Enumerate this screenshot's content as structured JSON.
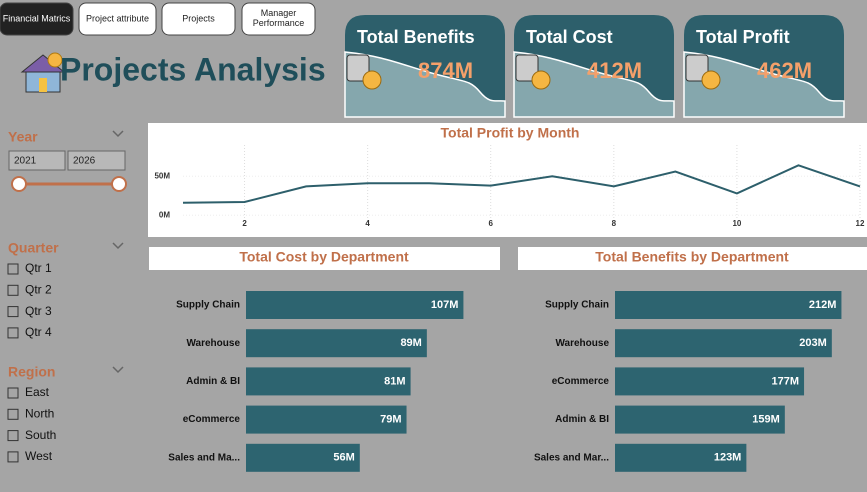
{
  "nav": {
    "tabs": [
      "Financial Matrics",
      "Project attribute",
      "Projects",
      "Manager Performance"
    ]
  },
  "header": {
    "title": "Projects Analysis"
  },
  "kpis": [
    {
      "label": "Total Benefits",
      "value": "874M"
    },
    {
      "label": "Total Cost",
      "value": "412M"
    },
    {
      "label": "Total Profit",
      "value": "462M"
    }
  ],
  "filters": {
    "year": {
      "label": "Year",
      "start": "2021",
      "end": "2026"
    },
    "quarter": {
      "label": "Quarter",
      "options": [
        "Qtr 1",
        "Qtr 2",
        "Qtr 3",
        "Qtr 4"
      ]
    },
    "region": {
      "label": "Region",
      "options": [
        "East",
        "North",
        "South",
        "West"
      ]
    }
  },
  "chart_data": [
    {
      "type": "line",
      "title": "Total Profit by Month",
      "color": "#2d5f6b",
      "x": [
        1,
        2,
        3,
        4,
        5,
        6,
        7,
        8,
        9,
        10,
        11,
        12
      ],
      "values": [
        16,
        17,
        37,
        41,
        41,
        38,
        50,
        37,
        56,
        28,
        64,
        37
      ],
      "xlim": [
        1,
        12
      ],
      "xticks": [
        2,
        4,
        6,
        8,
        10,
        12
      ],
      "ylim": [
        -15,
        90
      ],
      "yticks": [
        {
          "value": 0,
          "label": "0M"
        },
        {
          "value": 50,
          "label": "50M"
        }
      ],
      "grid": true
    },
    {
      "type": "bar",
      "orientation": "horizontal",
      "title": "Total Cost by Department",
      "color": "#2d6470",
      "categories": [
        "Supply Chain",
        "Warehouse",
        "Admin & BI",
        "eCommerce",
        "Sales and Ma..."
      ],
      "values": [
        107,
        89,
        81,
        79,
        56
      ],
      "value_labels": [
        "107M",
        "89M",
        "81M",
        "79M",
        "56M"
      ],
      "xlim": [
        0,
        125
      ]
    },
    {
      "type": "bar",
      "orientation": "horizontal",
      "title": "Total Benefits by Department",
      "color": "#2d6470",
      "categories": [
        "Supply Chain",
        "Warehouse",
        "eCommerce",
        "Admin & BI",
        "Sales and Mar..."
      ],
      "values": [
        212,
        203,
        177,
        159,
        123
      ],
      "value_labels": [
        "212M",
        "203M",
        "177M",
        "159M",
        "123M"
      ],
      "xlim": [
        0,
        235
      ]
    }
  ]
}
